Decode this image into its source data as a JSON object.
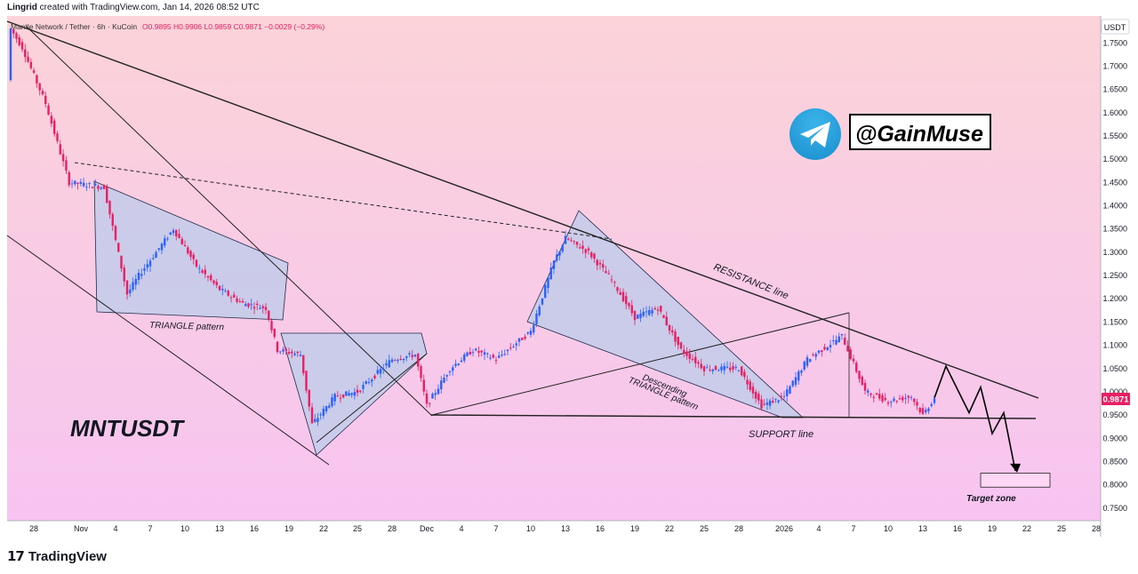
{
  "header": {
    "author": "Lingrid",
    "created_text": "created with TradingView.com, Jan 14, 2026 08:52 UTC"
  },
  "legend": {
    "symbol": "Mantle Network / Tether · 6h · KuCoin",
    "ohlc": "O0.9895 H0.9906 L0.9859 C0.9871 −0.0029 (−0.29%)"
  },
  "price_axis": {
    "currency": "USDT",
    "last_price": "0.9871",
    "ticks": [
      "1.7500",
      "1.7000",
      "1.6500",
      "1.6000",
      "1.5500",
      "1.5000",
      "1.4500",
      "1.4000",
      "1.3500",
      "1.3000",
      "1.2500",
      "1.2000",
      "1.1500",
      "1.1000",
      "1.0500",
      "1.0000",
      "0.9500",
      "0.9000",
      "0.8500",
      "0.8000",
      "0.7500"
    ]
  },
  "time_axis": {
    "ticks": [
      "28",
      "Nov",
      "4",
      "7",
      "10",
      "13",
      "16",
      "19",
      "22",
      "25",
      "28",
      "Dec",
      "4",
      "7",
      "10",
      "13",
      "16",
      "19",
      "22",
      "25",
      "28",
      "2026",
      "4",
      "7",
      "10",
      "13",
      "16",
      "19",
      "22",
      "25",
      "28"
    ]
  },
  "annotations": {
    "symbol_title": "MNTUSDT",
    "triangle_pattern": "TRIANGLE pattern",
    "descending_line1": "Descending",
    "descending_line2": "TRIANGLE pattern",
    "resistance": "RESISTANCE line",
    "support": "SUPPORT line",
    "target_zone": "Target zone",
    "telegram_handle": "@GainMuse"
  },
  "footer": {
    "brand": "TradingView",
    "brand_mark": "17"
  },
  "colors": {
    "bg_top": "#fbd3d8",
    "bg_bottom": "#f7c4f1",
    "up": "#2962ff",
    "down": "#e91e63",
    "pattern_fill": "#c3cbea",
    "telegram": "#2aa3df",
    "last_price_badge": "#e91e63"
  },
  "chart_data": {
    "type": "candlestick",
    "symbol": "MNTUSDT",
    "timeframe": "6h",
    "ylim": [
      0.73,
      1.8
    ],
    "current": {
      "open": 0.9895,
      "high": 0.9906,
      "low": 0.9859,
      "close": 0.9871
    },
    "price_path": [
      {
        "date": "Oct 26",
        "price": 1.67
      },
      {
        "date": "Oct 26",
        "price": 1.78
      },
      {
        "date": "Oct 27",
        "price": 1.74
      },
      {
        "date": "Oct 29",
        "price": 1.62
      },
      {
        "date": "Oct 31",
        "price": 1.45
      },
      {
        "date": "Nov 3",
        "price": 1.44
      },
      {
        "date": "Nov 5",
        "price": 1.21
      },
      {
        "date": "Nov 6",
        "price": 1.25
      },
      {
        "date": "Nov 9",
        "price": 1.35
      },
      {
        "date": "Nov 11",
        "price": 1.27
      },
      {
        "date": "Nov 13",
        "price": 1.22
      },
      {
        "date": "Nov 15",
        "price": 1.19
      },
      {
        "date": "Nov 17",
        "price": 1.18
      },
      {
        "date": "Nov 18",
        "price": 1.09
      },
      {
        "date": "Nov 20",
        "price": 1.08
      },
      {
        "date": "Nov 21",
        "price": 0.93
      },
      {
        "date": "Nov 23",
        "price": 0.99
      },
      {
        "date": "Nov 25",
        "price": 1.0
      },
      {
        "date": "Nov 28",
        "price": 1.07
      },
      {
        "date": "Nov 30",
        "price": 1.08
      },
      {
        "date": "Dec 1",
        "price": 0.97
      },
      {
        "date": "Dec 3",
        "price": 1.05
      },
      {
        "date": "Dec 5",
        "price": 1.09
      },
      {
        "date": "Dec 7",
        "price": 1.07
      },
      {
        "date": "Dec 10",
        "price": 1.13
      },
      {
        "date": "Dec 12",
        "price": 1.28
      },
      {
        "date": "Dec 13",
        "price": 1.33
      },
      {
        "date": "Dec 15",
        "price": 1.3
      },
      {
        "date": "Dec 17",
        "price": 1.24
      },
      {
        "date": "Dec 19",
        "price": 1.16
      },
      {
        "date": "Dec 21",
        "price": 1.18
      },
      {
        "date": "Dec 23",
        "price": 1.09
      },
      {
        "date": "Dec 25",
        "price": 1.05
      },
      {
        "date": "Dec 28",
        "price": 1.05
      },
      {
        "date": "Dec 30",
        "price": 0.97
      },
      {
        "date": "Jan 1",
        "price": 0.99
      },
      {
        "date": "Jan 3",
        "price": 1.07
      },
      {
        "date": "Jan 6",
        "price": 1.12
      },
      {
        "date": "Jan 8",
        "price": 1.0
      },
      {
        "date": "Jan 10",
        "price": 0.98
      },
      {
        "date": "Jan 12",
        "price": 0.99
      },
      {
        "date": "Jan 13",
        "price": 0.95
      },
      {
        "date": "Jan 14",
        "price": 0.987
      }
    ],
    "projection": [
      {
        "date": "Jan 14",
        "price": 0.987
      },
      {
        "date": "Jan 15",
        "price": 1.055
      },
      {
        "date": "Jan 17",
        "price": 0.955
      },
      {
        "date": "Jan 18",
        "price": 1.01
      },
      {
        "date": "Jan 19",
        "price": 0.91
      },
      {
        "date": "Jan 20",
        "price": 0.955
      },
      {
        "date": "Jan 21",
        "price": 0.83
      }
    ],
    "target_zone": {
      "start": "Jan 18",
      "end": "Jan 24",
      "price_low": 0.795,
      "price_high": 0.825
    },
    "support_level": 0.95
  }
}
